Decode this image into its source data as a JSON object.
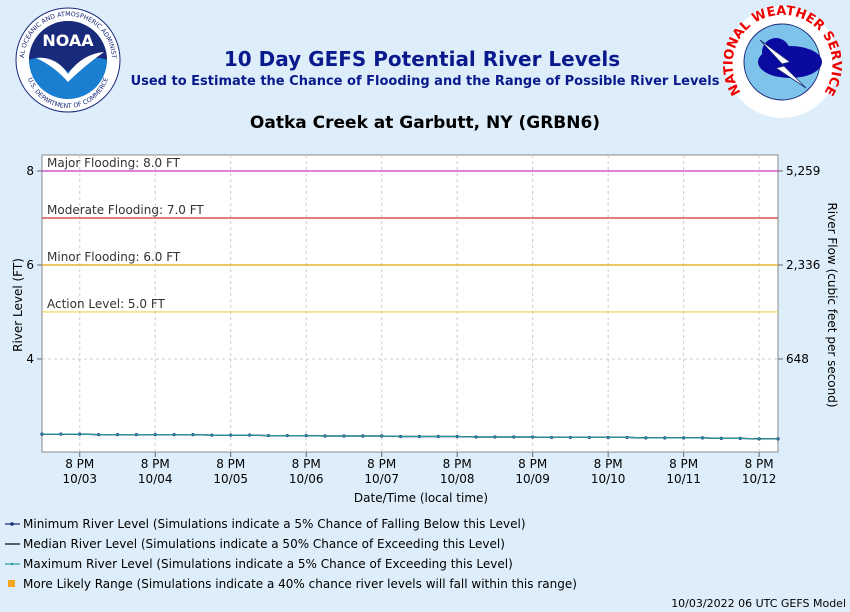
{
  "chart_data": {
    "type": "line",
    "title": "10 Day GEFS Potential River Levels",
    "subtitle": "Used to Estimate the Chance of Flooding and the Range of Possible River Levels",
    "location": "Oatka Creek at Garbutt, NY (GRBN6)",
    "logos": {
      "noaa": "NOAA",
      "noaa_top": "NATIONAL OCEANIC AND ATMOSPHERIC ADMINISTRATION",
      "noaa_bottom": "U.S. DEPARTMENT OF COMMERCE",
      "nws": "NATIONAL WEATHER SERVICE"
    },
    "x_label": "Date/Time (local time)",
    "y_label": "River Level (FT)",
    "y2_label": "River Flow (cubic feet per second)",
    "footer": "10/03/2022 06 UTC GEFS Model",
    "xlim": [
      "10/03 8 AM",
      "10/13 2 AM"
    ],
    "xticks": [
      {
        "value": "10/03 8 PM",
        "label": [
          "8 PM",
          "10/03"
        ]
      },
      {
        "value": "10/04 8 PM",
        "label": [
          "8 PM",
          "10/04"
        ]
      },
      {
        "value": "10/05 8 PM",
        "label": [
          "8 PM",
          "10/05"
        ]
      },
      {
        "value": "10/06 8 PM",
        "label": [
          "8 PM",
          "10/06"
        ]
      },
      {
        "value": "10/07 8 PM",
        "label": [
          "8 PM",
          "10/07"
        ]
      },
      {
        "value": "10/08 8 PM",
        "label": [
          "8 PM",
          "10/08"
        ]
      },
      {
        "value": "10/09 8 PM",
        "label": [
          "8 PM",
          "10/09"
        ]
      },
      {
        "value": "10/10 8 PM",
        "label": [
          "8 PM",
          "10/10"
        ]
      },
      {
        "value": "10/11 8 PM",
        "label": [
          "8 PM",
          "10/11"
        ]
      },
      {
        "value": "10/12 8 PM",
        "label": [
          "8 PM",
          "10/12"
        ]
      }
    ],
    "ylim": [
      2.02,
      8.34
    ],
    "yticks": [
      4,
      6,
      8
    ],
    "y2ticks": [
      {
        "value": 648,
        "label": "648"
      },
      {
        "value": 2336,
        "label": "2,336"
      },
      {
        "value": 5259,
        "label": "5,259"
      }
    ],
    "y2_stage": [
      4,
      6,
      8
    ],
    "grid": true,
    "thresholds": [
      {
        "label": "Major Flooding: 8.0 FT",
        "value": 8.0,
        "color": "#cc33cc"
      },
      {
        "label": "Moderate Flooding: 7.0 FT",
        "value": 7.0,
        "color": "#cc3333"
      },
      {
        "label": "Minor Flooding: 6.0 FT",
        "value": 6.0,
        "color": "#e0a800"
      },
      {
        "label": "Action Level: 5.0 FT",
        "value": 5.0,
        "color": "#e6d44c"
      }
    ],
    "x": [
      "10/03 8 AM",
      "10/03 2 PM",
      "10/03 8 PM",
      "10/04 2 AM",
      "10/04 8 AM",
      "10/04 2 PM",
      "10/04 8 PM",
      "10/05 2 AM",
      "10/05 8 AM",
      "10/05 2 PM",
      "10/05 8 PM",
      "10/06 2 AM",
      "10/06 8 AM",
      "10/06 2 PM",
      "10/06 8 PM",
      "10/07 2 AM",
      "10/07 8 AM",
      "10/07 2 PM",
      "10/07 8 PM",
      "10/08 2 AM",
      "10/08 8 AM",
      "10/08 2 PM",
      "10/08 8 PM",
      "10/09 2 AM",
      "10/09 8 AM",
      "10/09 2 PM",
      "10/09 8 PM",
      "10/10 2 AM",
      "10/10 8 AM",
      "10/10 2 PM",
      "10/10 8 PM",
      "10/11 2 AM",
      "10/11 8 AM",
      "10/11 2 PM",
      "10/11 8 PM",
      "10/12 2 AM",
      "10/12 8 AM",
      "10/12 2 PM",
      "10/12 8 PM",
      "10/13 2 AM"
    ],
    "series": [
      {
        "name": "Minimum River Level (Simulations indicate a 5% Chance of Falling Below this Level)",
        "color": "#1a2a7a",
        "style": "dots",
        "values": [
          2.4,
          2.4,
          2.4,
          2.39,
          2.39,
          2.39,
          2.39,
          2.39,
          2.39,
          2.38,
          2.38,
          2.38,
          2.37,
          2.37,
          2.37,
          2.36,
          2.36,
          2.36,
          2.36,
          2.35,
          2.35,
          2.35,
          2.35,
          2.34,
          2.34,
          2.34,
          2.34,
          2.33,
          2.33,
          2.33,
          2.33,
          2.33,
          2.32,
          2.32,
          2.32,
          2.32,
          2.31,
          2.31,
          2.3,
          2.3
        ]
      },
      {
        "name": "Median River Level (Simulations indicate a 50% Chance of Exceeding this Level)",
        "color": "#000000",
        "style": "line",
        "values": [
          2.4,
          2.4,
          2.4,
          2.39,
          2.39,
          2.39,
          2.39,
          2.39,
          2.39,
          2.38,
          2.38,
          2.38,
          2.37,
          2.37,
          2.37,
          2.36,
          2.36,
          2.36,
          2.36,
          2.35,
          2.35,
          2.35,
          2.35,
          2.34,
          2.34,
          2.34,
          2.34,
          2.33,
          2.33,
          2.33,
          2.33,
          2.33,
          2.32,
          2.32,
          2.32,
          2.32,
          2.31,
          2.31,
          2.3,
          2.3
        ]
      },
      {
        "name": "Maximum River Level (Simulations indicate a 5% Chance of Exceeding this Level)",
        "color": "#2a9aa0",
        "style": "small-dots",
        "values": [
          2.4,
          2.4,
          2.4,
          2.39,
          2.39,
          2.39,
          2.39,
          2.39,
          2.39,
          2.38,
          2.38,
          2.38,
          2.37,
          2.37,
          2.37,
          2.36,
          2.36,
          2.36,
          2.36,
          2.35,
          2.35,
          2.35,
          2.35,
          2.34,
          2.34,
          2.34,
          2.34,
          2.33,
          2.33,
          2.33,
          2.33,
          2.33,
          2.32,
          2.32,
          2.32,
          2.32,
          2.31,
          2.31,
          2.3,
          2.3
        ]
      },
      {
        "name": "More Likely Range (Simulations indicate a 40% chance river levels will fall within this range)",
        "color": "#f5a623",
        "style": "range"
      }
    ]
  }
}
